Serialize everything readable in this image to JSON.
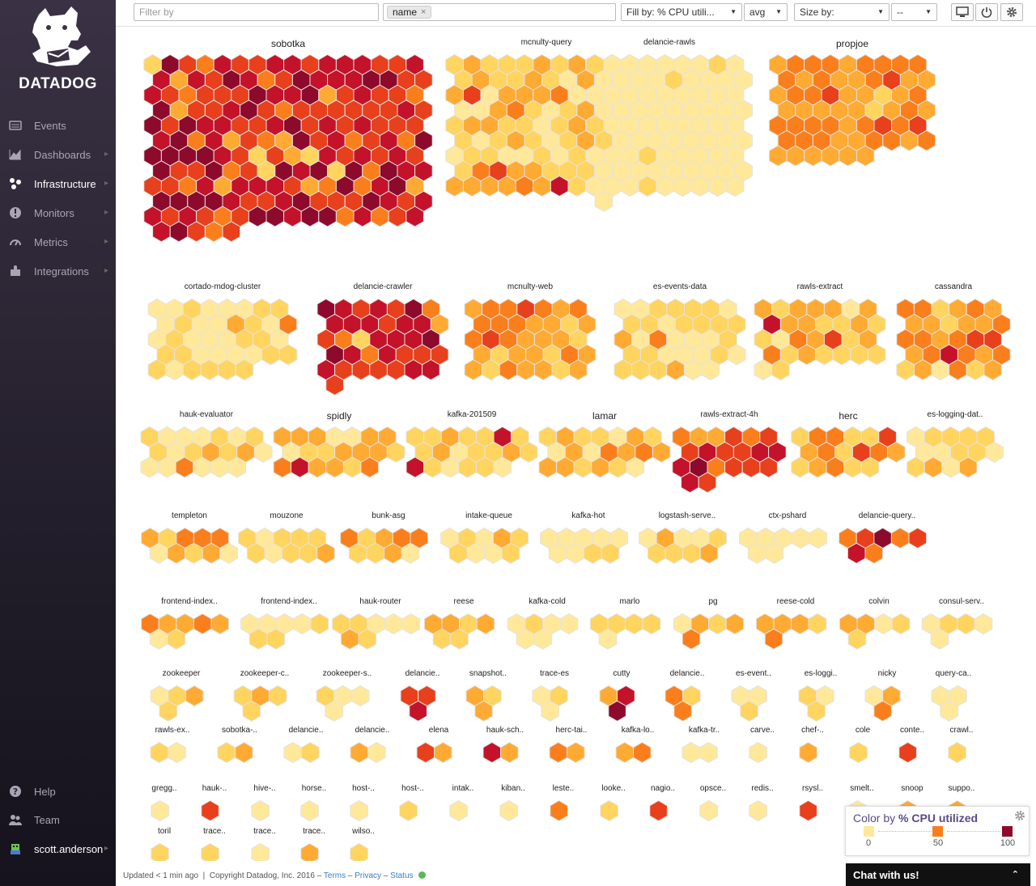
{
  "brand": {
    "name": "DATADOG"
  },
  "sidebar": {
    "items": [
      {
        "label": "Events",
        "icon": "events-icon",
        "chevron": false,
        "active": false
      },
      {
        "label": "Dashboards",
        "icon": "dashboards-icon",
        "chevron": true,
        "active": false
      },
      {
        "label": "Infrastructure",
        "icon": "infrastructure-icon",
        "chevron": true,
        "active": true
      },
      {
        "label": "Monitors",
        "icon": "monitors-icon",
        "chevron": true,
        "active": false
      },
      {
        "label": "Metrics",
        "icon": "metrics-icon",
        "chevron": true,
        "active": false
      },
      {
        "label": "Integrations",
        "icon": "integrations-icon",
        "chevron": true,
        "active": false
      }
    ],
    "bottom": [
      {
        "label": "Help",
        "icon": "help-icon",
        "chevron": false
      },
      {
        "label": "Team",
        "icon": "team-icon",
        "chevron": false
      },
      {
        "label": "scott.anderson",
        "icon": "avatar-icon",
        "chevron": true
      }
    ]
  },
  "toolbar": {
    "filter_placeholder": "Filter by",
    "group_tag": "name",
    "fill_by": "Fill by: % CPU utili...",
    "fill_agg": "avg",
    "size_by": "Size by:",
    "size_agg": "--"
  },
  "colors": {
    "c0": "#ffe89a",
    "c1": "#ffd45f",
    "c2": "#ffaa33",
    "c3": "#fa7f1c",
    "c4": "#e8401c",
    "c5": "#c4122a",
    "c6": "#8d0a2c",
    "hex_stroke": "#e3e3e3"
  },
  "groups": [
    {
      "name": "sobotka",
      "count": 181
    },
    {
      "name": "mcnulty-query",
      "count": 98
    },
    {
      "name": "delancie-rawls",
      "count": 82
    },
    {
      "name": "propjoe",
      "count": 60
    },
    {
      "name": "cortado-mdog-cluster",
      "count": 38
    },
    {
      "name": "delancie-crawler",
      "count": 36
    },
    {
      "name": "mcnulty-web",
      "count": 35
    },
    {
      "name": "es-events-data",
      "count": 34
    },
    {
      "name": "rawls-extract",
      "count": 30
    },
    {
      "name": "cassandra",
      "count": 30
    },
    {
      "name": "hauk-evaluator",
      "count": 20
    },
    {
      "name": "spidly",
      "count": 20
    },
    {
      "name": "kafka-201509",
      "count": 20
    },
    {
      "name": "lamar",
      "count": 20
    },
    {
      "name": "rawls-extract-4h",
      "count": 20
    },
    {
      "name": "herc",
      "count": 17
    },
    {
      "name": "es-logging-dat..",
      "count": 14
    },
    {
      "name": "templeton",
      "count": 10
    },
    {
      "name": "mouzone",
      "count": 10
    },
    {
      "name": "bunk-asg",
      "count": 9
    },
    {
      "name": "intake-queue",
      "count": 9
    },
    {
      "name": "kafka-hot",
      "count": 9
    },
    {
      "name": "logstash-serve..",
      "count": 9
    },
    {
      "name": "ctx-pshard",
      "count": 7
    },
    {
      "name": "delancie-query..",
      "count": 7
    },
    {
      "name": "frontend-index..",
      "count": 7
    },
    {
      "name": "frontend-index..",
      "count": 7
    },
    {
      "name": "hauk-router",
      "count": 7
    },
    {
      "name": "reese",
      "count": 6
    },
    {
      "name": "kafka-cold",
      "count": 6
    },
    {
      "name": "marlo",
      "count": 5
    },
    {
      "name": "pg",
      "count": 5
    },
    {
      "name": "reese-cold",
      "count": 5
    },
    {
      "name": "colvin",
      "count": 5
    },
    {
      "name": "consul-serv..",
      "count": 5
    },
    {
      "name": "zookeeper",
      "count": 4
    },
    {
      "name": "zookeeper-c..",
      "count": 4
    },
    {
      "name": "zookeeper-s..",
      "count": 4
    },
    {
      "name": "delancie..",
      "count": 3
    },
    {
      "name": "snapshot..",
      "count": 3
    },
    {
      "name": "trace-es",
      "count": 3
    },
    {
      "name": "cutty",
      "count": 3
    },
    {
      "name": "delancie..",
      "count": 3
    },
    {
      "name": "es-event..",
      "count": 3
    },
    {
      "name": "es-loggi..",
      "count": 3
    },
    {
      "name": "nicky",
      "count": 3
    },
    {
      "name": "query-ca..",
      "count": 3
    },
    {
      "name": "rawls-ex..",
      "count": 2
    },
    {
      "name": "sobotka-..",
      "count": 2
    },
    {
      "name": "delancie..",
      "count": 2
    },
    {
      "name": "delancie..",
      "count": 2
    },
    {
      "name": "elena",
      "count": 2
    },
    {
      "name": "hauk-sch..",
      "count": 2
    },
    {
      "name": "herc-tai..",
      "count": 2
    },
    {
      "name": "kafka-lo..",
      "count": 2
    },
    {
      "name": "kafka-tr..",
      "count": 2
    },
    {
      "name": "carve..",
      "count": 1
    },
    {
      "name": "chef-..",
      "count": 1
    },
    {
      "name": "cole",
      "count": 1
    },
    {
      "name": "conte..",
      "count": 1
    },
    {
      "name": "crawl..",
      "count": 1
    },
    {
      "name": "gregg..",
      "count": 1
    },
    {
      "name": "hauk-..",
      "count": 1
    },
    {
      "name": "hive-..",
      "count": 1
    },
    {
      "name": "horse..",
      "count": 1
    },
    {
      "name": "host-..",
      "count": 1
    },
    {
      "name": "host-..",
      "count": 1
    },
    {
      "name": "intak..",
      "count": 1
    },
    {
      "name": "kiban..",
      "count": 1
    },
    {
      "name": "leste..",
      "count": 1
    },
    {
      "name": "looke..",
      "count": 1
    },
    {
      "name": "nagio..",
      "count": 1
    },
    {
      "name": "opsce..",
      "count": 1
    },
    {
      "name": "redis..",
      "count": 1
    },
    {
      "name": "rsysl..",
      "count": 1
    },
    {
      "name": "smelt..",
      "count": 1
    },
    {
      "name": "snoop",
      "count": 1
    },
    {
      "name": "suppo..",
      "count": 1
    },
    {
      "name": "toril",
      "count": 1
    },
    {
      "name": "trace..",
      "count": 1
    },
    {
      "name": "trace..",
      "count": 1
    },
    {
      "name": "trace..",
      "count": 1
    },
    {
      "name": "wilso..",
      "count": 1
    }
  ],
  "legend": {
    "title_prefix": "Color by",
    "title_metric": "% CPU utilized",
    "min": "0",
    "mid": "50",
    "max": "100"
  },
  "footer": {
    "updated": "Updated < 1 min ago",
    "copyright": "Copyright Datadog, Inc. 2016 –",
    "terms": "Terms",
    "privacy": "Privacy",
    "status": "Status",
    "sep": "–"
  },
  "chat": {
    "label": "Chat with us!"
  }
}
